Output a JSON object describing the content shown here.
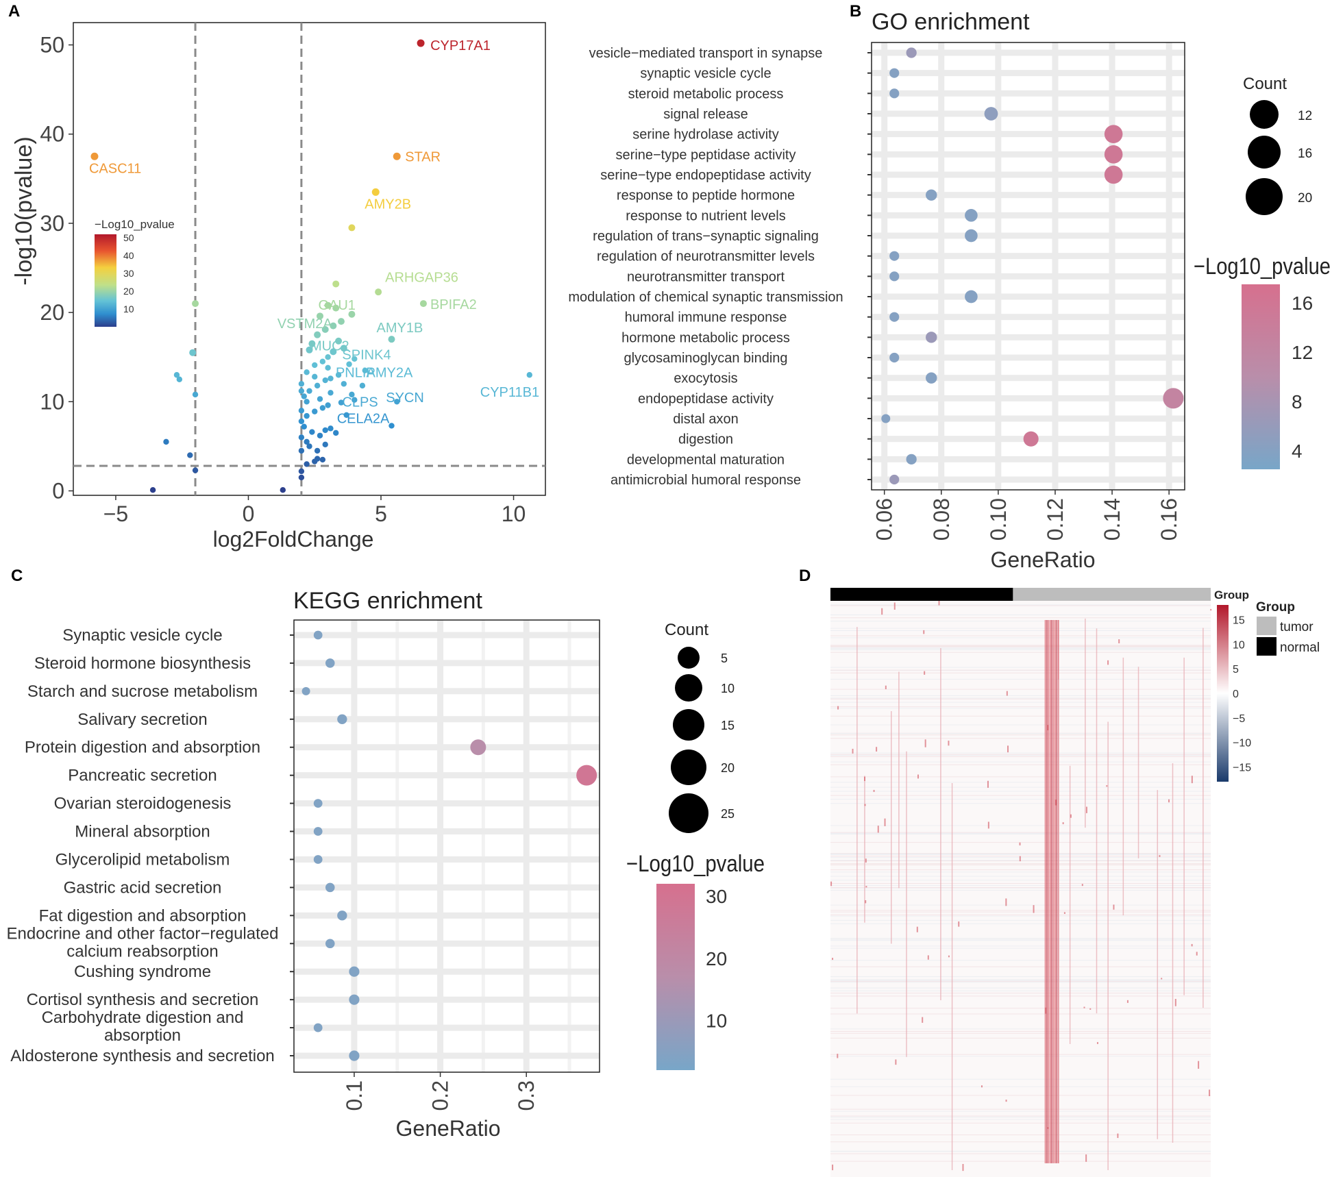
{
  "chart_data": [
    {
      "panel": "A",
      "type": "scatter",
      "title": "",
      "xlabel": "log2FoldChange",
      "ylabel": "-log10(pvalue)",
      "xlim": [
        -6.6,
        11.2
      ],
      "ylim": [
        -0.5,
        52.5
      ],
      "xticks": [
        -5,
        0,
        5,
        10
      ],
      "yticks": [
        0,
        10,
        20,
        30,
        40,
        50
      ],
      "xtick_labels": [
        "−5",
        "0",
        "5",
        "10"
      ],
      "vlines": [
        -2,
        2
      ],
      "hline": 2.8,
      "legend": {
        "title": "−Log10_pvalue",
        "ticks": [
          "50",
          "40",
          "30",
          "20",
          "10"
        ],
        "range": [
          0,
          52
        ]
      },
      "labeled_points": [
        {
          "gene": "CYP17A1",
          "x": 6.5,
          "y": 50.2
        },
        {
          "gene": "CASC11",
          "x": -5.8,
          "y": 37.5
        },
        {
          "gene": "STAR",
          "x": 5.6,
          "y": 37.5
        },
        {
          "gene": "AMY2B",
          "x": 4.8,
          "y": 33.5
        },
        {
          "gene": "ARHGAP36",
          "x": 4.9,
          "y": 22.5
        },
        {
          "gene": "GAU1",
          "x": 3.1,
          "y": 21.0
        },
        {
          "gene": "BPIFA2",
          "x": 6.6,
          "y": 21.0
        },
        {
          "gene": "VSTM2A",
          "x": 2.9,
          "y": 19.0
        },
        {
          "gene": "AMY1B",
          "x": 5.4,
          "y": 17.0
        },
        {
          "gene": "MUC2",
          "x": 2.7,
          "y": 16.5
        },
        {
          "gene": "SPINK4",
          "x": 3.9,
          "y": 15.5
        },
        {
          "gene": "PNLIP",
          "x": 3.5,
          "y": 13.5
        },
        {
          "gene": "AMY2A",
          "x": 4.6,
          "y": 13.5
        },
        {
          "gene": "CYP11B1",
          "x": 10.6,
          "y": 13.0
        },
        {
          "gene": "SYCN",
          "x": 5.6,
          "y": 10.5
        },
        {
          "gene": "CLPS",
          "x": 3.9,
          "y": 11.0
        },
        {
          "gene": "CELA2A",
          "x": 3.7,
          "y": 8.3
        }
      ],
      "points": [
        [
          6.5,
          50.2
        ],
        [
          -5.8,
          37.5
        ],
        [
          5.6,
          37.5
        ],
        [
          4.8,
          33.5
        ],
        [
          3.9,
          29.5
        ],
        [
          3.3,
          23.2
        ],
        [
          4.9,
          22.3
        ],
        [
          6.6,
          21.0
        ],
        [
          3.0,
          20.8
        ],
        [
          3.3,
          20.5
        ],
        [
          3.9,
          19.8
        ],
        [
          5.4,
          17.0
        ],
        [
          10.6,
          13.0
        ],
        [
          -2.0,
          21.0
        ],
        [
          -2.1,
          15.5
        ],
        [
          -2.7,
          13.0
        ],
        [
          -2.6,
          12.5
        ],
        [
          -2.0,
          10.8
        ],
        [
          -3.1,
          5.5
        ],
        [
          -2.2,
          4.0
        ],
        [
          -2.0,
          2.3
        ],
        [
          -3.6,
          0.1
        ],
        [
          1.3,
          0.1
        ],
        [
          2.0,
          1.5
        ],
        [
          2.0,
          2.2
        ],
        [
          2.2,
          3.0
        ],
        [
          2.5,
          3.3
        ],
        [
          2.6,
          3.6
        ],
        [
          2.8,
          3.5
        ],
        [
          2.0,
          4.5
        ],
        [
          2.2,
          5.5
        ],
        [
          2.0,
          6.0
        ],
        [
          2.4,
          6.6
        ],
        [
          2.7,
          6.2
        ],
        [
          2.9,
          6.8
        ],
        [
          3.1,
          7.0
        ],
        [
          3.3,
          6.5
        ],
        [
          5.4,
          7.3
        ],
        [
          2.0,
          7.8
        ],
        [
          2.2,
          8.4
        ],
        [
          2.5,
          8.9
        ],
        [
          2.8,
          9.3
        ],
        [
          3.0,
          9.6
        ],
        [
          3.5,
          9.9
        ],
        [
          4.0,
          10.2
        ],
        [
          2.1,
          10.6
        ],
        [
          2.3,
          11.2
        ],
        [
          2.6,
          11.8
        ],
        [
          2.9,
          12.4
        ],
        [
          3.1,
          12.6
        ],
        [
          3.4,
          13.0
        ],
        [
          4.3,
          11.8
        ],
        [
          5.6,
          10.0
        ],
        [
          2.0,
          12.0
        ],
        [
          2.2,
          13.3
        ],
        [
          2.5,
          14.1
        ],
        [
          2.8,
          14.5
        ],
        [
          3.0,
          15.0
        ],
        [
          3.2,
          15.6
        ],
        [
          3.6,
          16.0
        ],
        [
          2.4,
          16.5
        ],
        [
          2.6,
          17.5
        ],
        [
          2.9,
          18.1
        ],
        [
          3.2,
          18.5
        ],
        [
          3.5,
          19.0
        ],
        [
          2.7,
          19.6
        ],
        [
          2.3,
          15.8
        ],
        [
          3.8,
          14.2
        ],
        [
          3.1,
          11.0
        ],
        [
          3.6,
          12.0
        ],
        [
          4.4,
          13.5
        ],
        [
          2.0,
          9.0
        ],
        [
          2.1,
          7.2
        ],
        [
          2.3,
          5.0
        ],
        [
          2.6,
          4.5
        ],
        [
          2.9,
          5.2
        ],
        [
          3.7,
          8.5
        ],
        [
          2.0,
          11.2
        ],
        [
          3.4,
          16.8
        ],
        [
          2.5,
          12.8
        ],
        [
          2.2,
          10.0
        ],
        [
          4.0,
          14.8
        ],
        [
          3.0,
          13.8
        ],
        [
          3.9,
          10.8
        ],
        [
          2.7,
          10.3
        ]
      ]
    },
    {
      "panel": "B",
      "type": "scatter",
      "title": "GO enrichment",
      "xlabel": "GeneRatio",
      "ylabel": "",
      "xlim": [
        0.0555,
        0.1655
      ],
      "xticks": [
        0.06,
        0.08,
        0.1,
        0.12,
        0.14,
        0.16
      ],
      "xtick_labels": [
        "0.06",
        "0.08",
        "0.10",
        "0.12",
        "0.14",
        "0.16"
      ],
      "size_legend": {
        "title": "Count",
        "values": [
          "12",
          "16",
          "20"
        ]
      },
      "color_legend": {
        "title": "−Log10_pvalue",
        "ticks": [
          "16",
          "12",
          "8",
          "4"
        ],
        "range": [
          2.5,
          17.5
        ]
      },
      "terms": [
        {
          "term": "vesicle−mediated transport in synapse",
          "ratio": 0.0695,
          "pvalue": 6.5,
          "count": 9
        },
        {
          "term": "synaptic vesicle cycle",
          "ratio": 0.0635,
          "pvalue": 4.0,
          "count": 8
        },
        {
          "term": "steroid metabolic process",
          "ratio": 0.0635,
          "pvalue": 4.0,
          "count": 8
        },
        {
          "term": "signal release",
          "ratio": 0.0975,
          "pvalue": 5.0,
          "count": 13
        },
        {
          "term": "serine hydrolase activity",
          "ratio": 0.1405,
          "pvalue": 15.5,
          "count": 19
        },
        {
          "term": "serine−type peptidase activity",
          "ratio": 0.1405,
          "pvalue": 15.5,
          "count": 19
        },
        {
          "term": "serine−type endopeptidase activity",
          "ratio": 0.1405,
          "pvalue": 15.5,
          "count": 19
        },
        {
          "term": "response to peptide hormone",
          "ratio": 0.0765,
          "pvalue": 4.0,
          "count": 10
        },
        {
          "term": "response to nutrient levels",
          "ratio": 0.0905,
          "pvalue": 4.0,
          "count": 12
        },
        {
          "term": "regulation of trans−synaptic signaling",
          "ratio": 0.0905,
          "pvalue": 4.0,
          "count": 12
        },
        {
          "term": "regulation of neurotransmitter  levels",
          "ratio": 0.0635,
          "pvalue": 4.0,
          "count": 8
        },
        {
          "term": "neurotransmitter transport",
          "ratio": 0.0635,
          "pvalue": 4.0,
          "count": 8
        },
        {
          "term": "modulation of chemical synaptic transmission",
          "ratio": 0.0905,
          "pvalue": 4.0,
          "count": 12
        },
        {
          "term": "humoral immune response",
          "ratio": 0.0635,
          "pvalue": 4.0,
          "count": 8
        },
        {
          "term": "hormone metabolic process",
          "ratio": 0.0765,
          "pvalue": 6.5,
          "count": 10
        },
        {
          "term": "glycosaminoglycan binding",
          "ratio": 0.0635,
          "pvalue": 4.0,
          "count": 8
        },
        {
          "term": "exocytosis",
          "ratio": 0.0765,
          "pvalue": 4.0,
          "count": 10
        },
        {
          "term": "endopeptidase activity",
          "ratio": 0.1615,
          "pvalue": 12.5,
          "count": 22
        },
        {
          "term": "distal axon",
          "ratio": 0.0605,
          "pvalue": 4.0,
          "count": 7
        },
        {
          "term": "digestion",
          "ratio": 0.1115,
          "pvalue": 15.5,
          "count": 15
        },
        {
          "term": "developmental maturation",
          "ratio": 0.0695,
          "pvalue": 4.0,
          "count": 9
        },
        {
          "term": "antimicrobial humoral response",
          "ratio": 0.0635,
          "pvalue": 6.5,
          "count": 8
        }
      ]
    },
    {
      "panel": "C",
      "type": "scatter",
      "title": "KEGG enrichment",
      "xlabel": "GeneRatio",
      "ylabel": "",
      "xlim": [
        0.03,
        0.385
      ],
      "xticks": [
        0.1,
        0.2,
        0.3
      ],
      "xtick_labels": [
        "0.1",
        "0.2",
        "0.3"
      ],
      "size_legend": {
        "title": "Count",
        "values": [
          "5",
          "10",
          "15",
          "20",
          "25"
        ]
      },
      "color_legend": {
        "title": "−Log10_pvalue",
        "ticks": [
          "30",
          "20",
          "10"
        ],
        "range": [
          2,
          32
        ]
      },
      "terms": [
        {
          "term": "Synaptic vesicle cycle",
          "ratio": 0.058,
          "pvalue": 4,
          "count": 4
        },
        {
          "term": "Steroid hormone biosynthesis",
          "ratio": 0.072,
          "pvalue": 4,
          "count": 5
        },
        {
          "term": "Starch and sucrose metabolism",
          "ratio": 0.044,
          "pvalue": 4,
          "count": 3
        },
        {
          "term": "Salivary secretion",
          "ratio": 0.086,
          "pvalue": 4,
          "count": 6
        },
        {
          "term": "Protein digestion and absorption",
          "ratio": 0.244,
          "pvalue": 17,
          "count": 17
        },
        {
          "term": "Pancreatic secretion",
          "ratio": 0.37,
          "pvalue": 29,
          "count": 26
        },
        {
          "term": "Ovarian steroidogenesis",
          "ratio": 0.058,
          "pvalue": 4,
          "count": 4
        },
        {
          "term": "Mineral absorption",
          "ratio": 0.058,
          "pvalue": 4,
          "count": 4
        },
        {
          "term": "Glycerolipid metabolism",
          "ratio": 0.058,
          "pvalue": 4,
          "count": 4
        },
        {
          "term": "Gastric acid secretion",
          "ratio": 0.072,
          "pvalue": 4,
          "count": 5
        },
        {
          "term": "Fat digestion and absorption",
          "ratio": 0.086,
          "pvalue": 4,
          "count": 6
        },
        {
          "term": "Endocrine and other factor−regulated\ncalcium reabsorption",
          "ratio": 0.072,
          "pvalue": 4,
          "count": 5
        },
        {
          "term": "Cushing syndrome",
          "ratio": 0.1,
          "pvalue": 4,
          "count": 7
        },
        {
          "term": "Cortisol synthesis and secretion",
          "ratio": 0.1,
          "pvalue": 4,
          "count": 7
        },
        {
          "term": "Carbohydrate digestion and\nabsorption",
          "ratio": 0.058,
          "pvalue": 4,
          "count": 4
        },
        {
          "term": "Aldosterone synthesis and secretion",
          "ratio": 0.1,
          "pvalue": 4,
          "count": 7
        }
      ]
    },
    {
      "panel": "D",
      "type": "heatmap",
      "title": "",
      "annotation_label": "Group",
      "legend_title": "Group",
      "groups": [
        {
          "name": "tumor",
          "color": "#bdbdbd"
        },
        {
          "name": "normal",
          "color": "#000000"
        }
      ],
      "scale_ticks": [
        "15",
        "10",
        "5",
        "0",
        "−5",
        "−10",
        "−15"
      ],
      "scale_range": [
        -18,
        18
      ],
      "normal_fraction": 0.48
    }
  ],
  "panel_labels": [
    "A",
    "B",
    "C",
    "D"
  ],
  "colors": {
    "volcano_high": "#b2182b",
    "volcano_low": "#2c4e9a",
    "enrich_high": "#d6708e",
    "enrich_low": "#78a6c8",
    "heat_high": "#b2182b",
    "heat_low": "#1a3a6b"
  }
}
